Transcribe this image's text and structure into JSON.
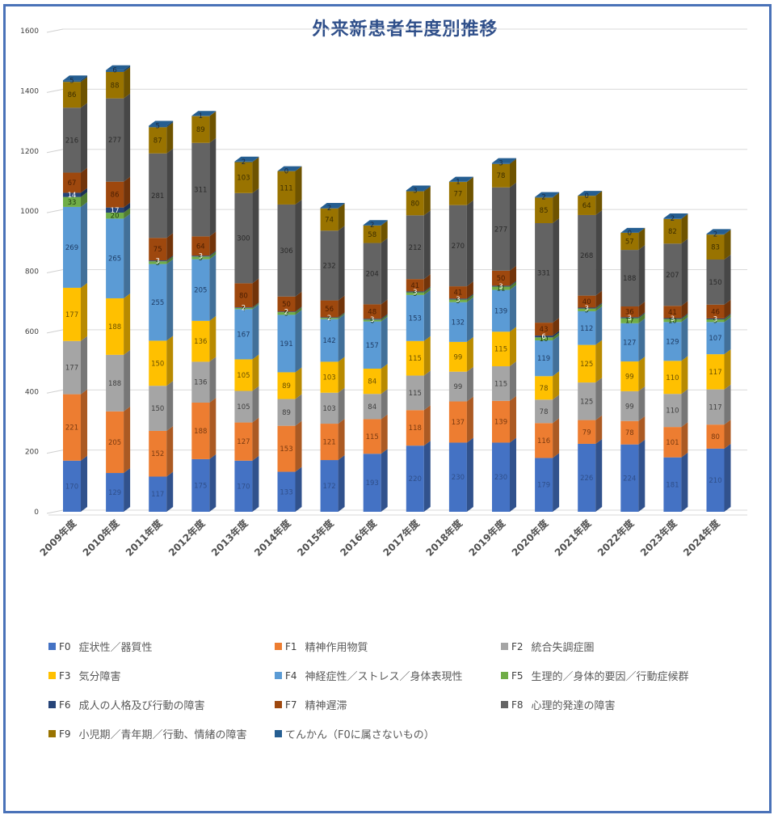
{
  "chart_data": {
    "type": "bar",
    "stacked": true,
    "style": "3d-column",
    "title": "外来新患者年度別推移",
    "xlabel": "",
    "ylabel": "",
    "ylim": [
      0,
      1600
    ],
    "yticks": [
      0,
      200,
      400,
      600,
      800,
      1000,
      1200,
      1400,
      1600
    ],
    "grid": true,
    "legend_position": "bottom",
    "categories": [
      "2009年度",
      "2010年度",
      "2011年度",
      "2012年度",
      "2013年度",
      "2014年度",
      "2015年度",
      "2016年度",
      "2017年度",
      "2018年度",
      "2019年度",
      "2020年度",
      "2021年度",
      "2022年度",
      "2023年度",
      "2024年度"
    ],
    "series": [
      {
        "code": "F0",
        "name": "症状性／器質性",
        "color": "#4472c4",
        "label_color": "#2f4f8a",
        "values": [
          170,
          129,
          117,
          175,
          170,
          133,
          172,
          193,
          220,
          230,
          230,
          179,
          226,
          224,
          181,
          210
        ]
      },
      {
        "code": "F1",
        "name": "精神作用物質",
        "color": "#ed7d31",
        "label_color": "#7a3a10",
        "values": [
          221,
          205,
          152,
          188,
          127,
          153,
          121,
          115,
          118,
          137,
          139,
          116,
          79,
          78,
          101,
          80
        ]
      },
      {
        "code": "F2",
        "name": "統合失調症圏",
        "color": "#a5a5a5",
        "label_color": "#404040",
        "values": [
          177,
          188,
          150,
          136,
          105,
          89,
          103,
          84,
          115,
          99,
          115,
          78,
          125,
          99,
          110,
          117
        ]
      },
      {
        "code": "F3",
        "name": "気分障害",
        "color": "#ffc000",
        "label_color": "#6b5000",
        "values": [
          177,
          188,
          150,
          136,
          105,
          89,
          103,
          84,
          115,
          99,
          115,
          78,
          125,
          99,
          110,
          117
        ]
      },
      {
        "code": "F4",
        "name": "神経症性／ストレス／身体表現性",
        "color": "#5b9bd5",
        "label_color": "#1f3d66",
        "values": [
          269,
          265,
          255,
          205,
          167,
          191,
          142,
          157,
          153,
          132,
          139,
          119,
          112,
          127,
          129,
          107
        ]
      },
      {
        "code": "F5",
        "name": "生理的／身体的要因／行動症候群",
        "color": "#70ad47",
        "label_color": "#1e3a10",
        "values": [
          33,
          20,
          9,
          9,
          4,
          9,
          4,
          6,
          9,
          9,
          11,
          10,
          9,
          17,
          10,
          9
        ]
      },
      {
        "code": "F6",
        "name": "成人の人格及び行動の障害",
        "color": "#264478",
        "label_color": "#ffffff",
        "values": [
          14,
          17,
          3,
          3,
          2,
          2,
          2,
          3,
          3,
          3,
          3,
          6,
          3,
          3,
          3,
          3
        ]
      },
      {
        "code": "F7",
        "name": "精神遅滞",
        "color": "#9e480e",
        "label_color": "#4a1e02",
        "values": [
          67,
          86,
          75,
          64,
          80,
          50,
          56,
          48,
          41,
          41,
          50,
          43,
          40,
          36,
          41,
          46
        ]
      },
      {
        "code": "F8",
        "name": "心理的発達の障害",
        "color": "#636363",
        "label_color": "#2a2a2a",
        "values": [
          216,
          277,
          281,
          311,
          300,
          306,
          232,
          204,
          212,
          270,
          277,
          331,
          268,
          188,
          207,
          150
        ]
      },
      {
        "code": "F9",
        "name": "小児期／青年期／行動、情緒の障害",
        "color": "#997300",
        "label_color": "#3d2e00",
        "values": [
          86,
          88,
          87,
          89,
          103,
          111,
          74,
          58,
          80,
          77,
          78,
          85,
          64,
          57,
          82,
          83
        ]
      },
      {
        "code": "",
        "name": "てんかん（F0に属さないもの）",
        "color": "#255e91",
        "label_color": "#1a2a40",
        "values": [
          5,
          6,
          5,
          1,
          2,
          0,
          2,
          2,
          3,
          1,
          3,
          2,
          0,
          0,
          2,
          2
        ]
      }
    ]
  }
}
